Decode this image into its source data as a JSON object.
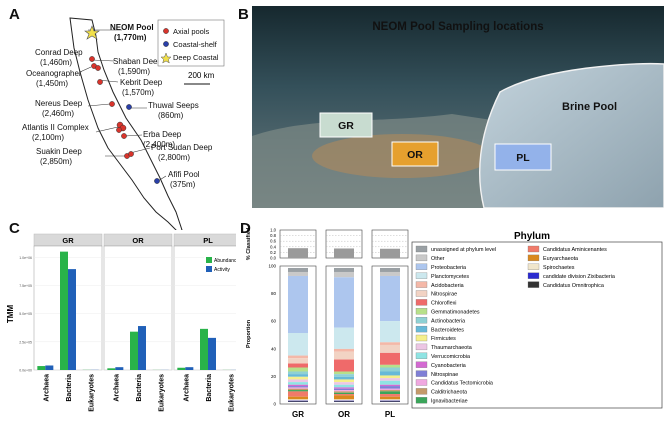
{
  "panels": {
    "a": "A",
    "b": "B",
    "c": "C",
    "d": "D"
  },
  "map": {
    "legend": [
      "Axial pools",
      "Coastal-shelf",
      "Deep Coastal"
    ],
    "scale_label": "200 km",
    "sites": [
      {
        "name": "NEOM Pool",
        "depth": "(1,770m)",
        "type": "deep-coastal"
      },
      {
        "name": "Conrad Deep",
        "depth": "(1,460m)",
        "type": "axial"
      },
      {
        "name": "Shaban Deep",
        "depth": "(1,590m)",
        "type": "axial"
      },
      {
        "name": "Oceanographer",
        "depth": "(1,450m)",
        "type": "axial"
      },
      {
        "name": "Kebrit Deep",
        "depth": "(1,570m)",
        "type": "axial"
      },
      {
        "name": "Nereus Deep",
        "depth": "(2,460m)",
        "type": "axial"
      },
      {
        "name": "Thuwal Seeps",
        "depth": "(860m)",
        "type": "coastal"
      },
      {
        "name": "Atlantis II Complex",
        "depth": "(2,100m)",
        "type": "axial"
      },
      {
        "name": "Erba Deep",
        "depth": "(2,400m)",
        "type": "axial"
      },
      {
        "name": "Suakin Deep",
        "depth": "(2,850m)",
        "type": "axial"
      },
      {
        "name": "Port Sudan Deep",
        "depth": "(2,800m)",
        "type": "axial"
      },
      {
        "name": "Afifi Pool",
        "depth": "(375m)",
        "type": "coastal"
      }
    ]
  },
  "photo": {
    "title": "NEOM Pool Sampling locations",
    "brine_label": "Brine Pool",
    "boxes": [
      "GR",
      "OR",
      "PL"
    ]
  },
  "colors": {
    "axial": "#d8342c",
    "coastal": "#2a3fa8",
    "deep_coastal": "#f1e04a",
    "abundance": "#29b34a",
    "activity": "#2060b8",
    "gr_box": "#c8dcd0",
    "or_box": "#e6a02e",
    "pl_box": "#93b2ea"
  },
  "chart_data": [
    {
      "type": "bar",
      "ylabel": "TMM",
      "facets": [
        "GR",
        "OR",
        "PL"
      ],
      "categories": [
        "Archaea",
        "Bacteria",
        "Eukaryotes"
      ],
      "legend": [
        "Abundance",
        "Activity"
      ],
      "ytick_labels": [
        "0.0e+00",
        "2.5e+05",
        "5.0e+05",
        "7.5e+05",
        "1.0e+06"
      ],
      "ylim": [
        0,
        1100000
      ],
      "series": [
        {
          "name": "Abundance",
          "values": {
            "GR": [
              35000,
              1050000,
              1500
            ],
            "OR": [
              15000,
              340000,
              1000
            ],
            "PL": [
              20000,
              365000,
              1000
            ]
          }
        },
        {
          "name": "Activity",
          "values": {
            "GR": [
              40000,
              895000,
              1500
            ],
            "OR": [
              25000,
              390000,
              1000
            ],
            "PL": [
              25000,
              285000,
              1000
            ]
          }
        }
      ]
    },
    {
      "type": "bar",
      "stacked": true,
      "legend_title": "Phylum",
      "top_ylabel": "% Classified",
      "top_ticks": [
        "0.0",
        "0.2",
        "0.4",
        "0.6",
        "0.8",
        "1.0"
      ],
      "top_values": {
        "GR": 0.35,
        "OR": 0.34,
        "PL": 0.33
      },
      "bottom_ylabel": "Proportion",
      "bottom_ticks": [
        "0",
        "20",
        "40",
        "60",
        "80",
        "100"
      ],
      "categories": [
        "GR",
        "OR",
        "PL"
      ],
      "phyla": [
        {
          "name": "unassigned at phylum level",
          "color": "#9aa0a4"
        },
        {
          "name": "Other",
          "color": "#c9c9c9"
        },
        {
          "name": "Proteobacteria",
          "color": "#adc6ee"
        },
        {
          "name": "Planctomycetes",
          "color": "#cce8ee"
        },
        {
          "name": "Acidobacteria",
          "color": "#f4b8a8"
        },
        {
          "name": "Nitrospirae",
          "color": "#f2d3c4"
        },
        {
          "name": "Chloroflexi",
          "color": "#ef6a6a"
        },
        {
          "name": "Gemmatimonadetes",
          "color": "#b7e08a"
        },
        {
          "name": "Actinobacteria",
          "color": "#8fd1d4"
        },
        {
          "name": "Bacteroidetes",
          "color": "#67b9d8"
        },
        {
          "name": "Firmicutes",
          "color": "#f5ef8c"
        },
        {
          "name": "Thaumarchaeota",
          "color": "#ecc6e4"
        },
        {
          "name": "Verrucomicrobia",
          "color": "#8fe4e3"
        },
        {
          "name": "Cyanobacteria",
          "color": "#d46ad2"
        },
        {
          "name": "Nitrospinae",
          "color": "#7f7fd6"
        },
        {
          "name": "Candidatus Tectomicrobia",
          "color": "#f0a8e0"
        },
        {
          "name": "Calditrichaeota",
          "color": "#c49a6a"
        },
        {
          "name": "Ignavibacteriae",
          "color": "#3aa55a"
        },
        {
          "name": "Candidatus Aminicenantes",
          "color": "#f07a6a"
        },
        {
          "name": "Euryarchaeota",
          "color": "#d9881e"
        },
        {
          "name": "Spirochaetes",
          "color": "#f0e6cc"
        },
        {
          "name": "candidate division Zixibacteria",
          "color": "#2a2ad0"
        },
        {
          "name": "Candidatus Omnitrophica",
          "color": "#333333"
        }
      ],
      "values": {
        "GR": [
          3,
          3,
          43,
          17,
          2,
          4,
          3,
          3,
          2,
          2,
          2,
          2,
          2,
          1,
          1,
          1,
          1,
          1,
          4,
          2,
          1,
          0.5,
          0.5
        ],
        "OR": [
          3,
          4,
          38,
          16,
          2,
          6,
          9,
          2,
          2,
          2,
          2,
          2,
          2,
          1,
          1,
          1,
          1,
          1,
          1,
          3,
          1,
          0.5,
          0.5
        ],
        "PL": [
          3,
          3,
          34,
          16,
          2,
          6,
          9,
          2,
          3,
          3,
          2,
          2,
          3,
          1,
          2,
          1,
          1,
          2,
          2,
          2,
          1,
          0.5,
          0.5
        ]
      }
    }
  ]
}
